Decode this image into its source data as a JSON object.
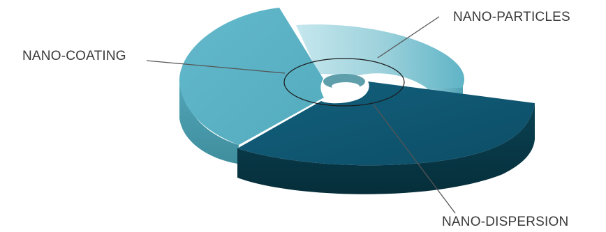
{
  "diagram": {
    "segments": [
      {
        "name": "NANO-COATING",
        "top_color": "#5BB3C6",
        "side_color": "#489AAB"
      },
      {
        "name": "NANO-PARTICLES",
        "top_color": "#9ED2DC",
        "side_color": "#7FC0CD"
      },
      {
        "name": "NANO-DISPERSION",
        "top_color": "#0F5570",
        "side_color": "#083848"
      }
    ],
    "labels": {
      "coating": "NANO-COATING",
      "particles": "NANO-PARTICLES",
      "dispersion": "NANO-DISPERSION"
    },
    "leader_color": "#555555",
    "inner_ring_color": "#1a1a1a"
  }
}
